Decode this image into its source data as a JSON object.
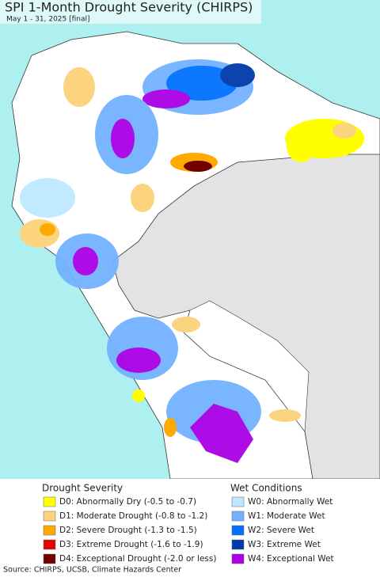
{
  "header": {
    "title": "SPI 1-Month Drought Severity (CHIRPS)",
    "subtitle": "May 1 - 31, 2025 [final]"
  },
  "legend": {
    "drought": {
      "title": "Drought Severity",
      "items": [
        {
          "label": "D0: Abnormally Dry (-0.5 to -0.7)",
          "color": "#ffff00"
        },
        {
          "label": "D1: Moderate Drought (-0.8 to -1.2)",
          "color": "#fcd37f"
        },
        {
          "label": "D2: Severe Drought (-1.3 to -1.5)",
          "color": "#ffaa00"
        },
        {
          "label": "D3: Extreme Drought (-1.6 to -1.9)",
          "color": "#e60000"
        },
        {
          "label": "D4: Exceptional Drought (-2.0 or less)",
          "color": "#730000"
        }
      ]
    },
    "wet": {
      "title": "Wet Conditions",
      "items": [
        {
          "label": "W0: Abnormally Wet",
          "color": "#bee8ff"
        },
        {
          "label": "W1: Moderate Wet",
          "color": "#73b2ff"
        },
        {
          "label": "W2: Severe Wet",
          "color": "#0070ff"
        },
        {
          "label": "W3: Extreme Wet",
          "color": "#0039a8"
        },
        {
          "label": "W4: Exceptional Wet",
          "color": "#a900e6"
        }
      ]
    }
  },
  "source": "Source: CHIRPS, UCSB, Climate Hazards Center"
}
